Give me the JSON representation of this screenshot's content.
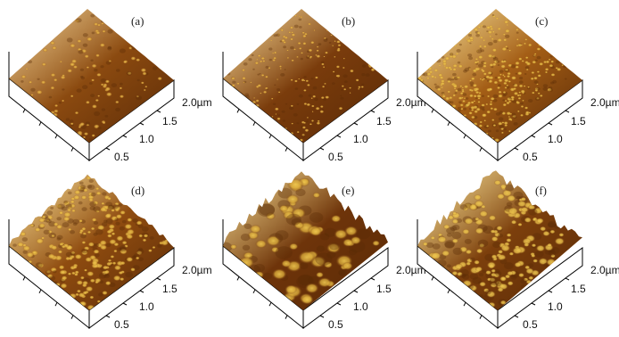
{
  "figure": {
    "panels": [
      {
        "id": "a",
        "label": "(a)",
        "texture": "fine-smooth",
        "base": "#8b4a10",
        "highlight": "#d39a3a",
        "relief": "low"
      },
      {
        "id": "b",
        "label": "(b)",
        "texture": "fine-dots",
        "base": "#7a3c0c",
        "highlight": "#d9a23c",
        "relief": "low"
      },
      {
        "id": "c",
        "label": "(c)",
        "texture": "granular",
        "base": "#a45e16",
        "highlight": "#e0b340",
        "relief": "low"
      },
      {
        "id": "d",
        "label": "(d)",
        "texture": "grain-bumps",
        "base": "#8f4c10",
        "highlight": "#e2b240",
        "relief": "medium"
      },
      {
        "id": "e",
        "label": "(e)",
        "texture": "large-hills",
        "base": "#6e340a",
        "highlight": "#d8a838",
        "relief": "high"
      },
      {
        "id": "f",
        "label": "(f)",
        "texture": "peaks",
        "base": "#7c3f0c",
        "highlight": "#e6bc48",
        "relief": "high"
      }
    ],
    "axis_ticks": [
      "0.5",
      "1.0",
      "1.5",
      "2.0µm"
    ]
  },
  "colors": {
    "surface_dark": "#5a2a06",
    "surface_light": "#f0c850",
    "axis_line": "#000000"
  }
}
